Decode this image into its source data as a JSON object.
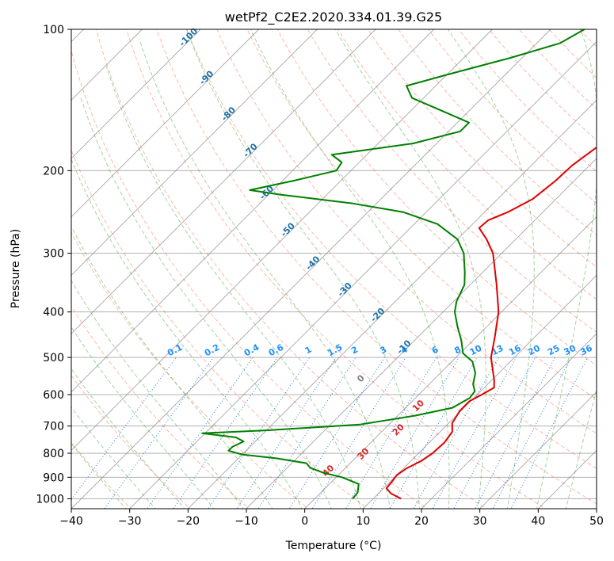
{
  "chart_data": {
    "type": "line",
    "diagram": "skew-t log-p",
    "title": "wetPf2_C2E2.2020.334.01.39.G25",
    "xlabel": "Temperature (°C)",
    "ylabel": "Pressure (hPa)",
    "xlim": [
      -40,
      50
    ],
    "ylim": [
      1050,
      100
    ],
    "y_scale": "log",
    "grid": true,
    "x_ticks": [
      -40,
      -30,
      -20,
      -10,
      0,
      10,
      20,
      30,
      40,
      50
    ],
    "y_ticks": [
      100,
      200,
      300,
      400,
      500,
      600,
      700,
      800,
      900,
      1000
    ],
    "series": [
      {
        "color": "#e00000",
        "points": [
          {
            "p": 1000,
            "t": 14.8
          },
          {
            "p": 975,
            "t": 12.2
          },
          {
            "p": 950,
            "t": 10.5
          },
          {
            "p": 920,
            "t": 10.3
          },
          {
            "p": 890,
            "t": 10.0
          },
          {
            "p": 860,
            "t": 10.6
          },
          {
            "p": 830,
            "t": 11.8
          },
          {
            "p": 800,
            "t": 12.4
          },
          {
            "p": 760,
            "t": 12.6
          },
          {
            "p": 720,
            "t": 12.1
          },
          {
            "p": 690,
            "t": 10.6
          },
          {
            "p": 650,
            "t": 9.8
          },
          {
            "p": 620,
            "t": 9.8
          },
          {
            "p": 600,
            "t": 10.8
          },
          {
            "p": 580,
            "t": 11.7
          },
          {
            "p": 560,
            "t": 10.5
          },
          {
            "p": 500,
            "t": 6.0
          },
          {
            "p": 450,
            "t": 3.0
          },
          {
            "p": 400,
            "t": -0.5
          },
          {
            "p": 350,
            "t": -5.5
          },
          {
            "p": 300,
            "t": -11.5
          },
          {
            "p": 280,
            "t": -15.0
          },
          {
            "p": 265,
            "t": -18.2
          },
          {
            "p": 255,
            "t": -18.0
          },
          {
            "p": 245,
            "t": -16.0
          },
          {
            "p": 230,
            "t": -14.0
          },
          {
            "p": 210,
            "t": -13.2
          },
          {
            "p": 195,
            "t": -13.0
          },
          {
            "p": 180,
            "t": -12.0
          },
          {
            "p": 165,
            "t": -10.5
          },
          {
            "p": 150,
            "t": -12.0
          },
          {
            "p": 140,
            "t": -14.0
          },
          {
            "p": 130,
            "t": -17.0
          },
          {
            "p": 120,
            "t": -21.2
          },
          {
            "p": 110,
            "t": -25.0
          },
          {
            "p": 100,
            "t": -29.0
          }
        ]
      },
      {
        "color": "#008000",
        "points": [
          {
            "p": 1000,
            "t": 6.5
          },
          {
            "p": 970,
            "t": 6.3
          },
          {
            "p": 930,
            "t": 5.0
          },
          {
            "p": 900,
            "t": 1.0
          },
          {
            "p": 880,
            "t": -3.0
          },
          {
            "p": 860,
            "t": -6.0
          },
          {
            "p": 840,
            "t": -7.5
          },
          {
            "p": 820,
            "t": -13.5
          },
          {
            "p": 805,
            "t": -20.0
          },
          {
            "p": 790,
            "t": -23.0
          },
          {
            "p": 775,
            "t": -23.0
          },
          {
            "p": 755,
            "t": -22.0
          },
          {
            "p": 740,
            "t": -24.0
          },
          {
            "p": 725,
            "t": -30.5
          },
          {
            "p": 715,
            "t": -20.0
          },
          {
            "p": 695,
            "t": -5.0
          },
          {
            "p": 665,
            "t": 3.0
          },
          {
            "p": 640,
            "t": 8.0
          },
          {
            "p": 610,
            "t": 9.3
          },
          {
            "p": 590,
            "t": 9.0
          },
          {
            "p": 570,
            "t": 7.5
          },
          {
            "p": 540,
            "t": 6.0
          },
          {
            "p": 510,
            "t": 3.5
          },
          {
            "p": 490,
            "t": 0.5
          },
          {
            "p": 460,
            "t": -2.0
          },
          {
            "p": 430,
            "t": -5.0
          },
          {
            "p": 400,
            "t": -8.0
          },
          {
            "p": 380,
            "t": -9.5
          },
          {
            "p": 350,
            "t": -11.0
          },
          {
            "p": 330,
            "t": -13.0
          },
          {
            "p": 300,
            "t": -16.5
          },
          {
            "p": 280,
            "t": -20.0
          },
          {
            "p": 260,
            "t": -26.0
          },
          {
            "p": 245,
            "t": -34.0
          },
          {
            "p": 235,
            "t": -44.0
          },
          {
            "p": 225,
            "t": -58.0
          },
          {
            "p": 220,
            "t": -64.0
          },
          {
            "p": 210,
            "t": -58.0
          },
          {
            "p": 200,
            "t": -52.5
          },
          {
            "p": 192,
            "t": -53.0
          },
          {
            "p": 185,
            "t": -56.0
          },
          {
            "p": 175,
            "t": -44.0
          },
          {
            "p": 165,
            "t": -38.0
          },
          {
            "p": 158,
            "t": -38.0
          },
          {
            "p": 150,
            "t": -44.0
          },
          {
            "p": 140,
            "t": -52.0
          },
          {
            "p": 132,
            "t": -55.0
          },
          {
            "p": 125,
            "t": -50.0
          },
          {
            "p": 115,
            "t": -42.0
          },
          {
            "p": 107,
            "t": -36.0
          },
          {
            "p": 100,
            "t": -34.2
          }
        ]
      }
    ],
    "dry_adiabat_labels": [
      "-100",
      "-90",
      "-80",
      "-70",
      "-60",
      "-50",
      "-40",
      "-30",
      "-20",
      "-10"
    ],
    "moist_adiabat_labels": [
      "0",
      "10",
      "20",
      "30",
      "40"
    ],
    "mixing_ratio_labels": [
      "0.1",
      "0.2",
      "0.4",
      "0.6",
      "1",
      "1.5",
      "2",
      "3",
      "4",
      "6",
      "8",
      "10",
      "13",
      "16",
      "20",
      "25",
      "30",
      "36"
    ],
    "colors": {
      "temperature": "#e00000",
      "dewpoint": "#008000",
      "dry_adiabat": "#fa8060",
      "moist_adiabat": "#2ca02c",
      "mixing_ratio": "#1f77d4",
      "isotherm": "#808080",
      "dry_adiabat_label": "#1f6fa8",
      "moist_adiabat_label": "#d62728",
      "mixing_ratio_label": "#1e90ff",
      "zero_isotherm_label": "#808080"
    }
  }
}
